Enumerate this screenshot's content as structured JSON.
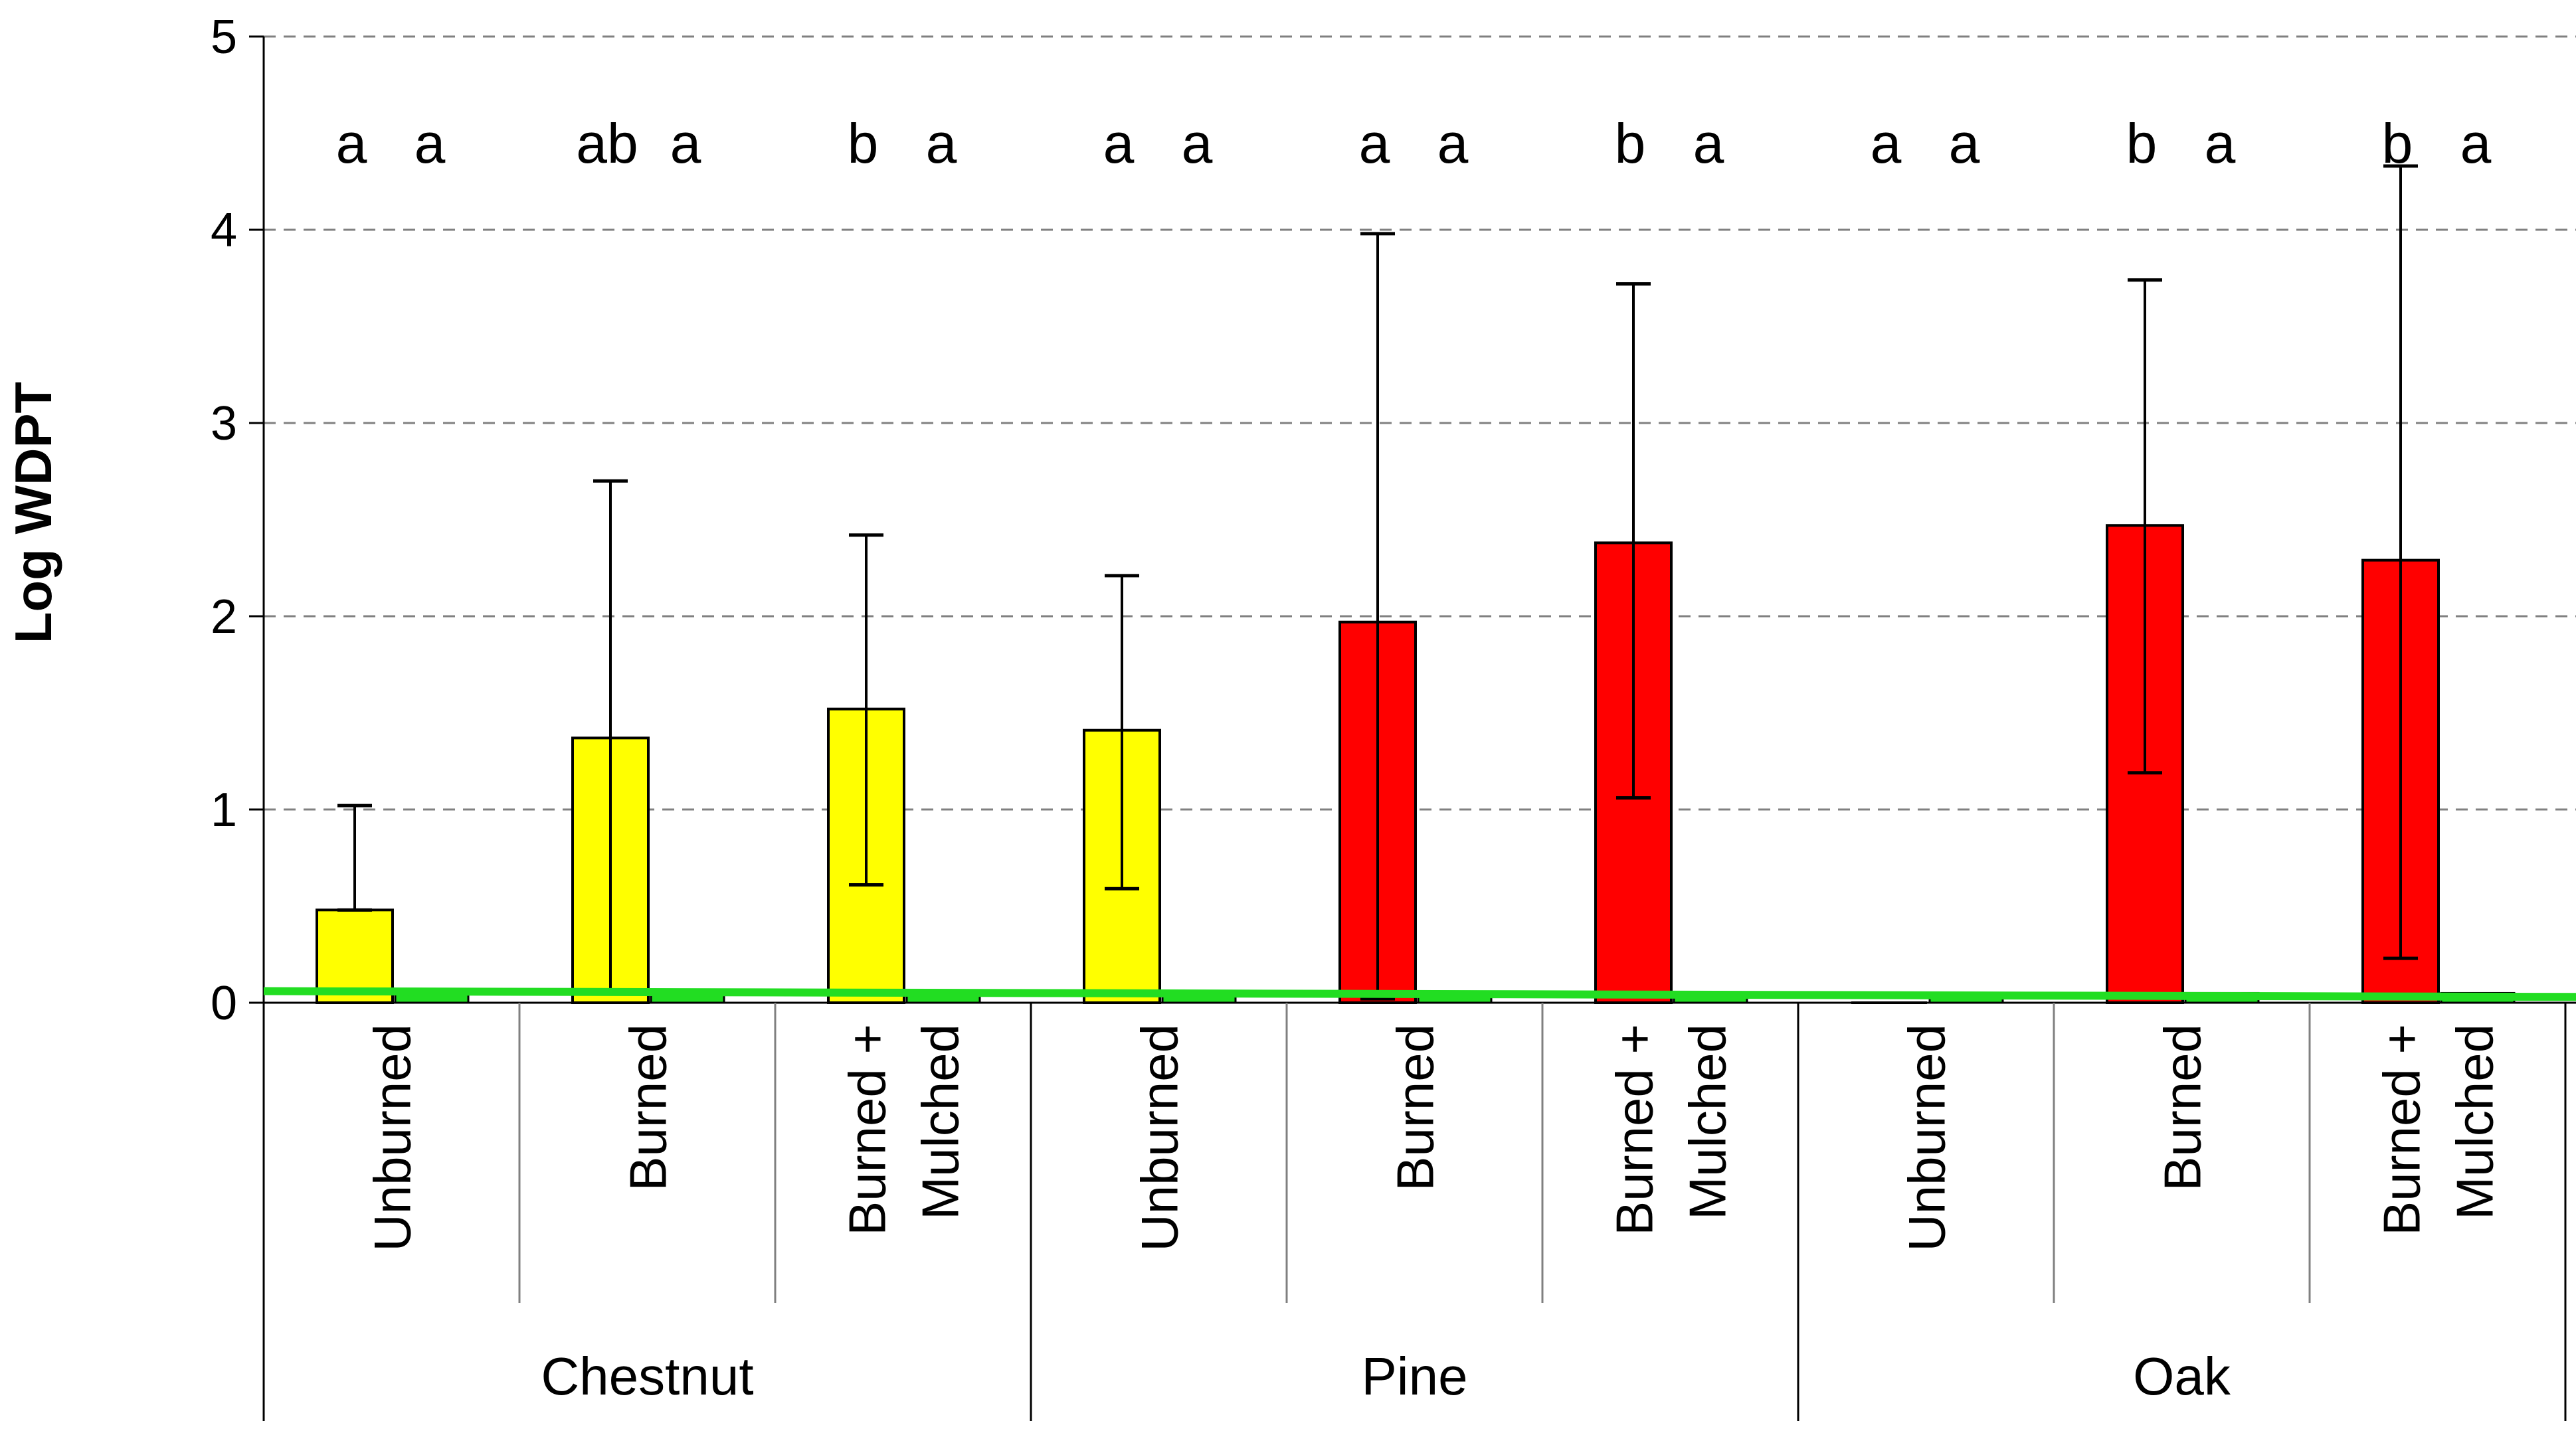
{
  "chart_data": {
    "type": "bar",
    "title": "",
    "xlabel": "",
    "ylabel": "Log WDPT",
    "ylim": [
      0,
      5
    ],
    "yticks": [
      "0",
      "1",
      "2",
      "3",
      "4",
      "5"
    ],
    "grid": "horizontal dashed",
    "groups": [
      {
        "name": "Chestnut",
        "categories": [
          {
            "label_lines": [
              "Unburned"
            ],
            "value": 0.48,
            "err_low": 0.48,
            "err_high": 1.02,
            "color": "#ffff00",
            "sig": "a",
            "ref_sig": "a",
            "ref_value": 0.05
          },
          {
            "label_lines": [
              "Burned"
            ],
            "value": 1.37,
            "err_low": 0.05,
            "err_high": 2.7,
            "color": "#ffff00",
            "sig": "ab",
            "ref_sig": "a",
            "ref_value": 0.05
          },
          {
            "label_lines": [
              "Burned +",
              "Mulched"
            ],
            "value": 1.52,
            "err_low": 0.61,
            "err_high": 2.42,
            "color": "#ffff00",
            "sig": "b",
            "ref_sig": "a",
            "ref_value": 0.05
          }
        ]
      },
      {
        "name": "Pine",
        "categories": [
          {
            "label_lines": [
              "Unburned"
            ],
            "value": 1.41,
            "err_low": 0.59,
            "err_high": 2.21,
            "color": "#ffff00",
            "sig": "a",
            "ref_sig": "a",
            "ref_value": 0.05
          },
          {
            "label_lines": [
              "Burned"
            ],
            "value": 1.97,
            "err_low": 0.02,
            "err_high": 3.98,
            "color": "#ff0000",
            "sig": "a",
            "ref_sig": "a",
            "ref_value": 0.05
          },
          {
            "label_lines": [
              "Burned +",
              "Mulched"
            ],
            "value": 2.38,
            "err_low": 1.06,
            "err_high": 3.72,
            "color": "#ff0000",
            "sig": "b",
            "ref_sig": "a",
            "ref_value": 0.05
          }
        ]
      },
      {
        "name": "Oak",
        "categories": [
          {
            "label_lines": [
              "Unburned"
            ],
            "value": 0.0,
            "err_low": null,
            "err_high": null,
            "color": "#ff0000",
            "sig": "a",
            "ref_sig": "a",
            "ref_value": 0.05
          },
          {
            "label_lines": [
              "Burned"
            ],
            "value": 2.47,
            "err_low": 1.19,
            "err_high": 3.74,
            "color": "#ff0000",
            "sig": "b",
            "ref_sig": "a",
            "ref_value": 0.05
          },
          {
            "label_lines": [
              "Burned +",
              "Mulched"
            ],
            "value": 2.29,
            "err_low": 0.23,
            "err_high": 4.33,
            "color": "#ff0000",
            "sig": "b",
            "ref_sig": "a",
            "ref_value": 0.05
          }
        ]
      }
    ],
    "reference_line": {
      "start_value": 0.06,
      "end_value": 0.03,
      "color": "#22dd22"
    }
  }
}
